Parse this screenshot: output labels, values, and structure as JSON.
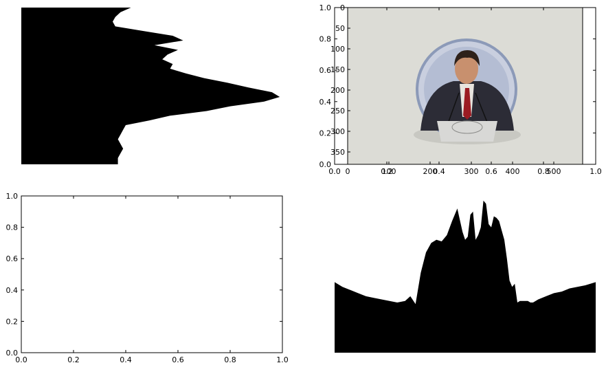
{
  "figure": {
    "background": "#ffffff",
    "foreground": "#000000"
  },
  "chart_data": [
    {
      "id": "row-profile",
      "type": "area",
      "orientation": "horizontal",
      "axes_visible": false,
      "y": [
        0,
        0.03,
        0.06,
        0.09,
        0.12,
        0.15,
        0.18,
        0.21,
        0.24,
        0.27,
        0.3,
        0.33,
        0.36,
        0.39,
        0.42,
        0.45,
        0.48,
        0.51,
        0.54,
        0.57,
        0.6,
        0.63,
        0.66,
        0.69,
        0.72,
        0.75,
        0.78,
        0.81,
        0.84,
        0.87,
        0.9,
        0.93,
        0.96,
        1.0
      ],
      "values": [
        0.42,
        0.38,
        0.36,
        0.35,
        0.36,
        0.47,
        0.58,
        0.62,
        0.51,
        0.6,
        0.56,
        0.54,
        0.58,
        0.57,
        0.63,
        0.7,
        0.79,
        0.87,
        0.96,
        0.99,
        0.93,
        0.8,
        0.71,
        0.57,
        0.49,
        0.4,
        0.39,
        0.38,
        0.37,
        0.38,
        0.39,
        0.38,
        0.37,
        0.37
      ]
    },
    {
      "id": "image-axes",
      "type": "image",
      "x_outer_ticks": [
        "0.0",
        "0.2",
        "0.4",
        "0.6",
        "0.8",
        "1.0"
      ],
      "y_outer_ticks": [
        "1.0",
        "0.8",
        "0.6",
        "0.4",
        "0.2",
        "0.0"
      ],
      "x_image_ticks": [
        "0",
        "100",
        "200",
        "300",
        "400",
        "500"
      ],
      "y_image_ticks": [
        "0",
        "50",
        "100",
        "150",
        "200",
        "250",
        "300",
        "350"
      ],
      "image_content": "photo of a round pin badge showing a man in a dark suit and red tie speaking at a podium with microphones"
    },
    {
      "id": "empty-axes",
      "type": "line",
      "series": [],
      "xlim": [
        0,
        1
      ],
      "ylim": [
        0,
        1
      ],
      "x_ticks": [
        "0.0",
        "0.2",
        "0.4",
        "0.6",
        "0.8",
        "1.0"
      ],
      "y_ticks": [
        "0.0",
        "0.2",
        "0.4",
        "0.6",
        "0.8",
        "1.0"
      ]
    },
    {
      "id": "column-profile",
      "type": "area",
      "orientation": "vertical",
      "axes_visible": false,
      "x": [
        0,
        0.03,
        0.06,
        0.09,
        0.12,
        0.15,
        0.18,
        0.21,
        0.24,
        0.27,
        0.29,
        0.31,
        0.33,
        0.35,
        0.37,
        0.39,
        0.41,
        0.43,
        0.45,
        0.47,
        0.49,
        0.5,
        0.51,
        0.52,
        0.53,
        0.54,
        0.55,
        0.56,
        0.57,
        0.58,
        0.59,
        0.6,
        0.61,
        0.62,
        0.63,
        0.64,
        0.65,
        0.66,
        0.67,
        0.68,
        0.69,
        0.7,
        0.71,
        0.72,
        0.73,
        0.74,
        0.75,
        0.76,
        0.78,
        0.81,
        0.84,
        0.87,
        0.9,
        0.93,
        0.96,
        1.0
      ],
      "values": [
        0.45,
        0.42,
        0.4,
        0.38,
        0.36,
        0.35,
        0.34,
        0.33,
        0.32,
        0.33,
        0.36,
        0.31,
        0.51,
        0.64,
        0.7,
        0.72,
        0.71,
        0.75,
        0.84,
        0.92,
        0.77,
        0.72,
        0.74,
        0.88,
        0.9,
        0.72,
        0.75,
        0.8,
        0.97,
        0.95,
        0.82,
        0.8,
        0.87,
        0.86,
        0.84,
        0.78,
        0.72,
        0.6,
        0.46,
        0.42,
        0.44,
        0.32,
        0.33,
        0.33,
        0.33,
        0.33,
        0.32,
        0.32,
        0.34,
        0.36,
        0.38,
        0.39,
        0.41,
        0.42,
        0.43,
        0.45
      ]
    }
  ]
}
